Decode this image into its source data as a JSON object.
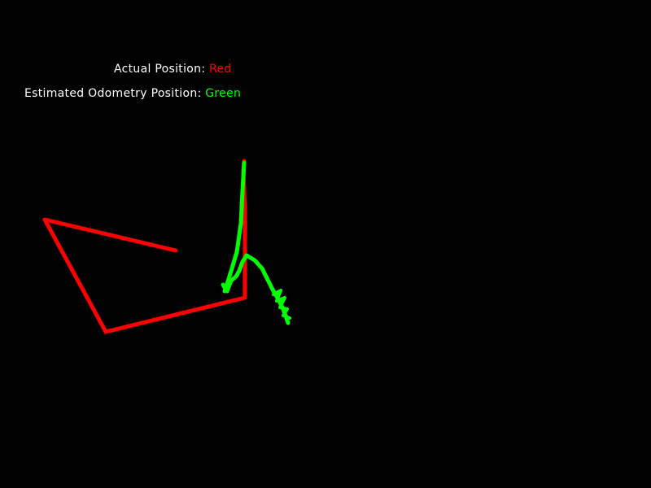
{
  "legend": {
    "actual_label": "Actual Position: ",
    "actual_color_name": "Red",
    "estimated_label": "Estimated Odometry Position: ",
    "estimated_color_name": "Green"
  },
  "colors": {
    "background": "#000000",
    "text": "#ffffff",
    "actual": "#ff0000",
    "estimated": "#00ff00"
  }
}
